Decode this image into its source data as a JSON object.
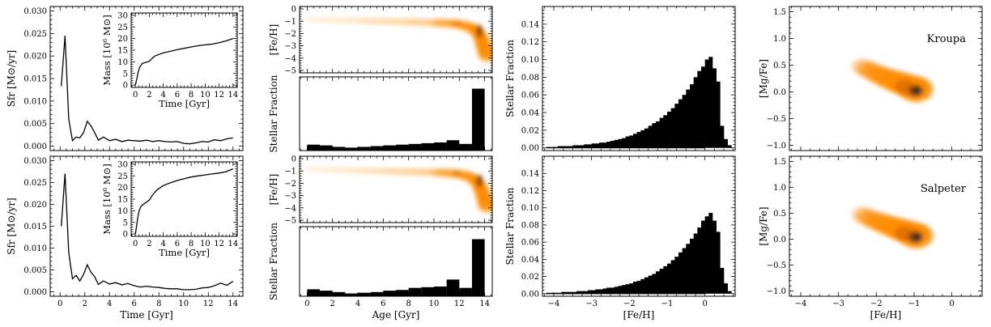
{
  "figure": {
    "rows": [
      "Kroupa",
      "Salpeter"
    ]
  },
  "chart_data": [
    {
      "id": "sfr-kroupa",
      "type": "line",
      "xlabel": "",
      "ylabel": "Sfr [M⊙/yr]",
      "xlim": [
        -0.8,
        14.8
      ],
      "ylim": [
        -0.001,
        0.031
      ],
      "xticks": [
        0,
        2,
        4,
        6,
        8,
        10,
        12,
        14
      ],
      "yticks": [
        0.0,
        0.005,
        0.01,
        0.015,
        0.02,
        0.025,
        0.03
      ],
      "x": [
        0.1,
        0.4,
        0.7,
        1.0,
        1.3,
        1.6,
        1.9,
        2.2,
        2.5,
        2.8,
        3.1,
        3.5,
        4,
        4.5,
        5,
        5.5,
        6,
        6.5,
        7,
        7.5,
        8,
        8.5,
        9,
        9.5,
        10,
        10.5,
        11,
        11.5,
        12,
        12.5,
        13,
        13.5,
        14
      ],
      "y": [
        0.0133,
        0.0245,
        0.006,
        0.0012,
        0.002,
        0.0018,
        0.003,
        0.0055,
        0.0045,
        0.003,
        0.0013,
        0.002,
        0.0012,
        0.0015,
        0.001,
        0.0013,
        0.0012,
        0.0011,
        0.0013,
        0.001,
        0.0012,
        0.001,
        0.0009,
        0.001,
        0.0006,
        0.0005,
        0.0007,
        0.001,
        0.0009,
        0.0014,
        0.0012,
        0.0016,
        0.0018
      ]
    },
    {
      "id": "mass-kroupa",
      "type": "line",
      "xlabel": "Time [Gyr]",
      "ylabel": "Mass [10⁶ M⊙]",
      "xlim": [
        -0.6,
        14.6
      ],
      "ylim": [
        -1,
        31
      ],
      "xticks": [
        0,
        2,
        4,
        6,
        8,
        10,
        12,
        14
      ],
      "yticks": [
        0,
        5,
        10,
        15,
        20,
        25,
        30
      ],
      "x": [
        0,
        0.2,
        0.4,
        0.6,
        0.8,
        1.0,
        1.5,
        2.0,
        2.4,
        2.8,
        3.2,
        4,
        5,
        6,
        7,
        8,
        9,
        10,
        11,
        12,
        13,
        14
      ],
      "y": [
        0,
        2.5,
        5.5,
        7.5,
        8.5,
        9.3,
        9.8,
        10.2,
        11.5,
        12.5,
        13.0,
        13.8,
        14.5,
        15.2,
        15.8,
        16.4,
        16.9,
        17.3,
        17.6,
        18.2,
        19.0,
        20.0
      ]
    },
    {
      "id": "sfr-salpeter",
      "type": "line",
      "xlabel": "Time [Gyr]",
      "ylabel": "Sfr [M⊙/yr]",
      "xlim": [
        -0.8,
        14.8
      ],
      "ylim": [
        -0.001,
        0.031
      ],
      "xticks": [
        0,
        2,
        4,
        6,
        8,
        10,
        12,
        14
      ],
      "yticks": [
        0.0,
        0.005,
        0.01,
        0.015,
        0.02,
        0.025,
        0.03
      ],
      "x": [
        0.1,
        0.4,
        0.7,
        1.0,
        1.3,
        1.6,
        1.9,
        2.2,
        2.5,
        2.8,
        3.1,
        3.5,
        4,
        4.5,
        5,
        5.5,
        6,
        6.5,
        7,
        7.5,
        8,
        8.5,
        9,
        9.5,
        10,
        10.5,
        11,
        11.5,
        12,
        12.5,
        13,
        13.5,
        14
      ],
      "y": [
        0.015,
        0.027,
        0.009,
        0.003,
        0.0038,
        0.0025,
        0.004,
        0.0062,
        0.0045,
        0.0035,
        0.0017,
        0.0025,
        0.0018,
        0.0021,
        0.0016,
        0.0019,
        0.0014,
        0.0011,
        0.0013,
        0.0011,
        0.001,
        0.0008,
        0.0007,
        0.0007,
        0.0005,
        0.0005,
        0.0006,
        0.0009,
        0.001,
        0.0014,
        0.002,
        0.0015,
        0.0024
      ]
    },
    {
      "id": "mass-salpeter",
      "type": "line",
      "xlabel": "Time [Gyr]",
      "ylabel": "Mass [10⁶ M⊙]",
      "xlim": [
        -0.6,
        14.6
      ],
      "ylim": [
        -1,
        31
      ],
      "xticks": [
        0,
        2,
        4,
        6,
        8,
        10,
        12,
        14
      ],
      "yticks": [
        0,
        5,
        10,
        15,
        20,
        25,
        30
      ],
      "x": [
        0,
        0.2,
        0.4,
        0.6,
        0.8,
        1.0,
        1.5,
        2.0,
        2.4,
        2.8,
        3.2,
        4,
        5,
        6,
        7,
        8,
        9,
        10,
        11,
        12,
        13,
        14
      ],
      "y": [
        0,
        4.0,
        8.0,
        10.5,
        11.8,
        12.5,
        13.5,
        14.6,
        16.5,
        18.0,
        19.2,
        20.8,
        22.0,
        23.0,
        23.8,
        24.5,
        25.0,
        25.4,
        25.8,
        26.2,
        26.8,
        28.0
      ]
    },
    {
      "id": "feh-age-kroupa",
      "type": "heatmap",
      "xlabel": "",
      "ylabel": "[Fe/H]",
      "xlim": [
        -0.6,
        14.6
      ],
      "ylim": [
        -5.2,
        0.2
      ],
      "xticks": [
        0,
        2,
        4,
        6,
        8,
        10,
        12,
        14
      ],
      "yticks": [
        0,
        -1,
        -2,
        -3,
        -4,
        -5
      ],
      "ridge_x": [
        0,
        2,
        4,
        6,
        8,
        10,
        11,
        12,
        12.8,
        13.3,
        13.6,
        13.8,
        14.0,
        14.2
      ],
      "ridge_y": [
        -0.85,
        -0.9,
        -0.95,
        -1.0,
        -1.05,
        -1.12,
        -1.15,
        -1.25,
        -1.45,
        -1.75,
        -2.1,
        -2.6,
        -3.2,
        -3.9
      ]
    },
    {
      "id": "age-frac-kroupa",
      "type": "bar",
      "xlabel": "",
      "ylabel": "Stellar Fraction",
      "xlim": [
        -0.6,
        14.6
      ],
      "ylim": [
        0,
        0.5
      ],
      "xticks": [
        0,
        2,
        4,
        6,
        8,
        10,
        12,
        14
      ],
      "bin_edges": [
        0,
        1,
        2,
        3,
        4,
        5,
        6,
        7,
        8,
        9,
        10,
        11,
        12,
        13,
        14
      ],
      "values": [
        0.04,
        0.035,
        0.025,
        0.02,
        0.025,
        0.03,
        0.035,
        0.04,
        0.045,
        0.05,
        0.055,
        0.07,
        0.045,
        0.42
      ]
    },
    {
      "id": "feh-age-salpeter",
      "type": "heatmap",
      "xlabel": "",
      "ylabel": "[Fe/H]",
      "xlim": [
        -0.6,
        14.6
      ],
      "ylim": [
        -5.2,
        0.2
      ],
      "xticks": [
        0,
        2,
        4,
        6,
        8,
        10,
        12,
        14
      ],
      "yticks": [
        0,
        -1,
        -2,
        -3,
        -4,
        -5
      ],
      "ridge_x": [
        0,
        2,
        4,
        6,
        8,
        10,
        11,
        12,
        12.8,
        13.3,
        13.6,
        13.8,
        14.0,
        14.2
      ],
      "ridge_y": [
        -0.85,
        -0.9,
        -0.95,
        -1.0,
        -1.05,
        -1.1,
        -1.15,
        -1.25,
        -1.45,
        -1.8,
        -2.2,
        -2.7,
        -3.3,
        -4.0
      ]
    },
    {
      "id": "age-frac-salpeter",
      "type": "bar",
      "xlabel": "Age [Gyr]",
      "ylabel": "Stellar Fraction",
      "xlim": [
        -0.6,
        14.6
      ],
      "ylim": [
        0,
        0.5
      ],
      "xticks": [
        0,
        2,
        4,
        6,
        8,
        10,
        12,
        14
      ],
      "bin_edges": [
        0,
        1,
        2,
        3,
        4,
        5,
        6,
        7,
        8,
        9,
        10,
        11,
        12,
        13,
        14
      ],
      "values": [
        0.05,
        0.04,
        0.03,
        0.02,
        0.025,
        0.03,
        0.04,
        0.045,
        0.06,
        0.065,
        0.07,
        0.12,
        0.06,
        0.41
      ]
    },
    {
      "id": "mdf-kroupa",
      "type": "bar",
      "xlabel": "",
      "ylabel": "Stellar Fraction",
      "xlim": [
        -4.3,
        0.8
      ],
      "ylim": [
        -0.003,
        0.16
      ],
      "xticks": [
        -4,
        -3,
        -2,
        -1,
        0
      ],
      "yticks": [
        0.0,
        0.02,
        0.04,
        0.06,
        0.08,
        0.1,
        0.12,
        0.14
      ],
      "bin_start": -4.2,
      "bin_width": 0.1,
      "values": [
        0.001,
        0.001,
        0.001,
        0.002,
        0.002,
        0.002,
        0.002,
        0.003,
        0.003,
        0.003,
        0.004,
        0.004,
        0.005,
        0.005,
        0.006,
        0.006,
        0.007,
        0.008,
        0.009,
        0.01,
        0.011,
        0.013,
        0.014,
        0.016,
        0.018,
        0.02,
        0.022,
        0.025,
        0.028,
        0.03,
        0.034,
        0.037,
        0.041,
        0.045,
        0.05,
        0.055,
        0.06,
        0.066,
        0.072,
        0.08,
        0.087,
        0.092,
        0.1,
        0.103,
        0.09,
        0.075,
        0.025,
        0.01,
        0.003,
        0.0,
        0.0
      ]
    },
    {
      "id": "mdf-salpeter",
      "type": "bar",
      "xlabel": "[Fe/H]",
      "ylabel": "Stellar Fraction",
      "xlim": [
        -4.3,
        0.8
      ],
      "ylim": [
        -0.003,
        0.16
      ],
      "xticks": [
        -4,
        -3,
        -2,
        -1,
        0
      ],
      "yticks": [
        0.0,
        0.02,
        0.04,
        0.06,
        0.08,
        0.1,
        0.12,
        0.14
      ],
      "bin_start": -4.2,
      "bin_width": 0.1,
      "values": [
        0.001,
        0.001,
        0.001,
        0.001,
        0.002,
        0.002,
        0.002,
        0.002,
        0.003,
        0.003,
        0.003,
        0.004,
        0.004,
        0.005,
        0.005,
        0.006,
        0.007,
        0.007,
        0.008,
        0.009,
        0.01,
        0.011,
        0.012,
        0.014,
        0.015,
        0.017,
        0.019,
        0.021,
        0.023,
        0.026,
        0.029,
        0.032,
        0.035,
        0.039,
        0.043,
        0.048,
        0.053,
        0.058,
        0.064,
        0.07,
        0.077,
        0.085,
        0.09,
        0.094,
        0.085,
        0.072,
        0.03,
        0.012,
        0.003,
        0.0,
        0.0
      ]
    },
    {
      "id": "mgfe-kroupa",
      "type": "heatmap",
      "title": "Kroupa",
      "xlabel": "",
      "ylabel": "[Mg/Fe]",
      "xlim": [
        -4.3,
        0.8
      ],
      "ylim": [
        -1.1,
        1.6
      ],
      "xticks": [
        -4,
        -3,
        -2,
        -1,
        0
      ],
      "yticks": [
        1.5,
        1.0,
        0.5,
        0.0,
        -0.5,
        -1.0
      ],
      "ridge_x": [
        -2.4,
        -2.1,
        -1.8,
        -1.5,
        -1.25,
        -1.05,
        -0.9
      ],
      "ridge_y": [
        0.48,
        0.38,
        0.28,
        0.2,
        0.14,
        0.08,
        0.04
      ]
    },
    {
      "id": "mgfe-salpeter",
      "type": "heatmap",
      "title": "Salpeter",
      "xlabel": "[Fe/H]",
      "ylabel": "[Mg/Fe]",
      "xlim": [
        -4.3,
        0.8
      ],
      "ylim": [
        -1.1,
        1.6
      ],
      "xticks": [
        -4,
        -3,
        -2,
        -1,
        0
      ],
      "yticks": [
        1.5,
        1.0,
        0.5,
        0.0,
        -0.5,
        -1.0
      ],
      "ridge_x": [
        -2.4,
        -2.1,
        -1.8,
        -1.5,
        -1.25,
        -1.05,
        -0.9
      ],
      "ridge_y": [
        0.48,
        0.38,
        0.3,
        0.22,
        0.16,
        0.1,
        0.06
      ]
    }
  ],
  "colors": {
    "line": "#000000",
    "heat_low": "#fff3e0",
    "heat_mid": "#ff8c00",
    "heat_high": "#000000"
  }
}
